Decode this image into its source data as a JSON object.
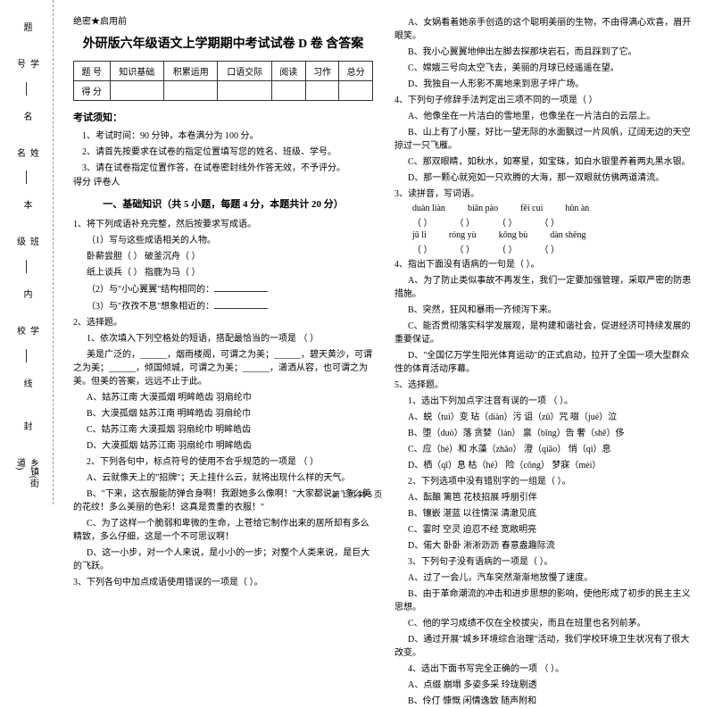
{
  "binding": {
    "labels": [
      "学号",
      "姓名",
      "班级",
      "学校",
      "乡镇(街道)"
    ],
    "side_chars": [
      "题",
      "名",
      "本",
      "内",
      "线",
      "封"
    ]
  },
  "header_note": "绝密★启用前",
  "title": "外研版六年级语文上学期期中考试试卷 D 卷  含答案",
  "score_table": {
    "headers": [
      "题  号",
      "知识基础",
      "积累运用",
      "口语交际",
      "阅读",
      "习作",
      "总分"
    ],
    "row_label": "得  分"
  },
  "notice": {
    "head": "考试须知：",
    "items": [
      "1、考试时间：90 分钟，本卷满分为 100 分。",
      "2、请首先按要求在试卷的指定位置填写您的姓名、班级、学号。",
      "3、请在试卷指定位置作答，在试卷密封线外作答无效，不予评分。"
    ]
  },
  "eval_row": "得分  评卷人",
  "section1_title": "一、基础知识（共 5 小题，每题 4 分，本题共计 20 分）",
  "q1": {
    "stem": "1、将下列成语补充完整，然后按要求写成语。",
    "sub1": "（1）写与这些成语相关的人物。",
    "line1a": "卧薪尝胆（        ）        破釜沉舟（        ）",
    "line1b": "纸上谈兵（        ）        指鹿为马（        ）",
    "sub2": "（2）与\"小心翼翼\"结构相同的：",
    "sub3": "（3）与\"孜孜不息\"想象相近的："
  },
  "q2": {
    "stem": "2、选择题。",
    "sub1": "1、依次填入下列空格处的短语，搭配最恰当的一项是  （        ）",
    "text": "美是广泛的，______，烟雨楼阁，可谓之为美；______，碧天黄沙，可谓之为美；______，倾国倾城，可谓之为美；______，潇洒从容，也可谓之为美。但美的答案，远远不止于此。",
    "optA": "A、姑苏江南    大漠孤烟    明眸皓齿    羽扇纶巾",
    "optB": "B、大漠孤烟    姑苏江南    明眸皓齿    羽扇纶巾",
    "optC": "C、姑苏江南    大漠孤烟    羽扇纶巾    明眸皓齿",
    "optD": "D、大漠孤烟    姑苏江南    羽扇纶巾    明眸皓齿",
    "sub2": "2、下列各句中，标点符号的使用不合乎规范的一项是  （        ）",
    "s2a": "A、云就像天上的\"招牌\"；天上挂什么云，就将出现什么样的天气。",
    "s2b": "B、\"下来，这衣服能防弹合身啊！我跟她多么像啊！\"大家都说。\"多么美的花纹！多么美丽的色彩！这真是贵重的衣服！\"",
    "s2c": "C、为了这样一个脆弱和卑微的生命，上苍给它制作出来的居所却有多么精致，多么仔细，这是一个不可思议啊！",
    "s2d": "D、这一小步，对一个人来说，是小小的一步；对整个人类来说，是巨大的飞跃。"
  },
  "q3": {
    "stem": "3、下列各句中加点成语使用错误的一项是（      ）。",
    "a": "A、女娲看着她亲手创造的这个聪明美丽的生物，不由得满心欢喜，眉开眼笑。",
    "b": "B、我小心翼翼地伸出左脚去探那块岩石，而且踩到了它。",
    "c": "C、嫦娥三号向太空飞去，美丽的月球已经遥遥在望。",
    "d": "D、我独自一人形影不离地来到思子坪广场。"
  },
  "q4": {
    "stem": "4、下列句子修辞手法判定出三项不同的一项是（        ）",
    "a": "A、他像坐在一片洁白的雪地里，也像坐在一片洁白的云层上。",
    "b": "B、山上有了小屋，好比一望无际的水面飘过一片风帆，辽阔无边的天空掠过一只飞雁。",
    "c": "C、那双眼睛，如秋水，如寒星，如宝珠，如白水银里养着两丸黑水银。",
    "d": "D、那一颗心就宛如一只欢腾的大海，那一双眼就仿佛两道清流。"
  },
  "q3b": {
    "stem": "3、读拼音，写词语。",
    "p1": [
      "duàn  liàn",
      "biān pào",
      "fěi cuì",
      "hūn àn"
    ],
    "p2": [
      "jǔ lì",
      "róng yù",
      "kōng bù",
      "dàn shēng"
    ]
  },
  "q4b": {
    "stem": "4、指出下面没有语病的一句是（      ）。",
    "a": "A、为了防止类似事故不再发生，我们一定要加强管理，采取严密的防患措施。",
    "b": "B、突然，狂风和暴雨一齐倾泻下来。",
    "c": "C、能否贯彻落实科学发展观，是构建和谐社会，促进经济可持续发展的重要保证。",
    "d": "D、\"全国亿万学生阳光体育运动\"的正式启动，拉开了全国一项大型群众性的体育活动序幕。"
  },
  "q5": {
    "stem": "5、选择题。",
    "sub1": "1、选出下列加点字注音有误的一项  （        ）。",
    "s1a": "A、蜕（tuì）变        玷（diàn）污        诅（zǔ）咒        啜（jué）泣",
    "s1b": "B、堕（duò）落        贪婪（lán）        禀（bǐng）告        奢（shē）侈",
    "s1c": "C、应（hé）和        水藻（zhǎo）        澄（qiāo）        悄（qì）息",
    "s1d": "D、栖（qī）息        枯（hé）        险（cōng）        梦寐（mèi）",
    "sub2": "2、下列选项中没有错别字的一组是（        ）。",
    "s2a": "A、酝酿    篱笆    花枝招展    呼朋引伴",
    "s2b": "B、镶嵌    湛蓝    以往情深    清澈见底",
    "s2c": "C、霎时    空灵    迫忍不经    宽敞明亮",
    "s2d": "D、偌大    卧卧    淅淅沥沥    春意盎趣际流",
    "sub3": "3、下列句子没有语病的一项是（        ）。",
    "s3a": "A、过了一会儿，汽车突然渐渐地放慢了速度。",
    "s3b": "B、由于革命潮流的冲击和进步思想的影响，使他形成了初步的民主主义思想。",
    "s3c": "C、他的学习成绩不仅在全校拔尖，而且在班里也名列前茅。",
    "s3d": "D、通过开展\"城乡环境综合治理\"活动，我们学校环境卫生状况有了很大改变。",
    "sub4": "4、选出下面书写完全正确的一项  （        ）。",
    "s4a": "A、点缀    崩塌    多姿多采    玲珑剔透",
    "s4b": "B、伶仃    慷慨    闲情逸致    随声附和"
  },
  "footer": "第 1 页  共 5 页"
}
